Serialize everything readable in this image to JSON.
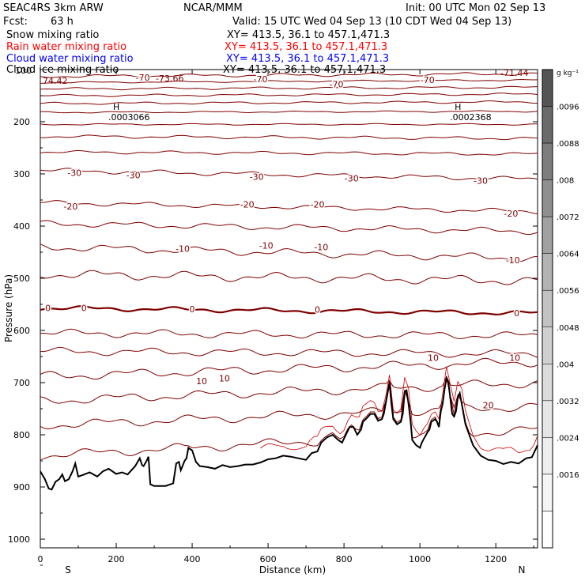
{
  "header": {
    "model": "SEAC4RS  3km ARW",
    "fcst_label": "Fcst:",
    "fcst_value": "63 h",
    "org": "NCAR/MMM",
    "init": "Init: 00 UTC Mon 02 Sep 13",
    "valid": "Valid: 15 UTC Wed 04 Sep 13 (10 CDT Wed 04 Sep 13)"
  },
  "fields": [
    {
      "name": "Snow mixing ratio",
      "xy": "XY= 413.5, 36.1 to 457.1,471.3",
      "color": "#000000"
    },
    {
      "name": "Rain water mixing ratio",
      "xy": "XY= 413.5, 36.1 to 457.1,471.3",
      "color": "#ff0000"
    },
    {
      "name": "Cloud water mixing ratio",
      "xy": "XY= 413.5, 36.1 to 457.1,471.3",
      "color": "#0000ff"
    },
    {
      "name": "Cloud ice mixing ratio",
      "xy": "XY= 413.5, 36.1 to 457.1,471.3",
      "color": "#000000"
    }
  ],
  "chart_data": {
    "type": "contour",
    "xlabel": "Distance (km)",
    "ylabel": "Pressure (hPa)",
    "xlim": [
      0,
      1310
    ],
    "ylim": [
      100,
      1050
    ],
    "xticks": [
      0,
      200,
      400,
      600,
      800,
      1000,
      1200
    ],
    "yticks": [
      200,
      300,
      400,
      500,
      600,
      700,
      800,
      900,
      1000
    ],
    "ytick_labels": [
      "200",
      "300",
      "400",
      "500",
      "600",
      "700",
      "800",
      "900",
      "1000"
    ],
    "x_end_labels": {
      "left": "S",
      "right": "N"
    },
    "ytick_label_top": "100",
    "temperature_contours_C": [
      -70,
      -30,
      -20,
      -10,
      0,
      10,
      20
    ],
    "contour_labels": [
      {
        "x": 270,
        "p": 115,
        "text": "-70"
      },
      {
        "x": 580,
        "p": 118,
        "text": "-70"
      },
      {
        "x": 780,
        "p": 128,
        "text": "-70"
      },
      {
        "x": 1020,
        "p": 120,
        "text": "-70"
      },
      {
        "x": 90,
        "p": 298,
        "text": "-30"
      },
      {
        "x": 245,
        "p": 302,
        "text": "-30"
      },
      {
        "x": 570,
        "p": 305,
        "text": "-30"
      },
      {
        "x": 820,
        "p": 308,
        "text": "-30"
      },
      {
        "x": 1160,
        "p": 313,
        "text": "-30"
      },
      {
        "x": 80,
        "p": 362,
        "text": "-20"
      },
      {
        "x": 545,
        "p": 358,
        "text": "-20"
      },
      {
        "x": 730,
        "p": 358,
        "text": "-20"
      },
      {
        "x": 1240,
        "p": 376,
        "text": "-20"
      },
      {
        "x": 375,
        "p": 443,
        "text": "-10"
      },
      {
        "x": 595,
        "p": 437,
        "text": "-10"
      },
      {
        "x": 740,
        "p": 440,
        "text": "-10"
      },
      {
        "x": 1245,
        "p": 465,
        "text": "-10"
      },
      {
        "x": 20,
        "p": 557,
        "text": "0"
      },
      {
        "x": 115,
        "p": 557,
        "text": "0"
      },
      {
        "x": 400,
        "p": 559,
        "text": "0"
      },
      {
        "x": 730,
        "p": 560,
        "text": "0"
      },
      {
        "x": 1255,
        "p": 567,
        "text": "0"
      },
      {
        "x": 1035,
        "p": 652,
        "text": "10"
      },
      {
        "x": 1250,
        "p": 652,
        "text": "10"
      },
      {
        "x": 425,
        "p": 697,
        "text": "10"
      },
      {
        "x": 485,
        "p": 692,
        "text": "10"
      },
      {
        "x": 1180,
        "p": 743,
        "text": "20"
      }
    ],
    "extrema": [
      {
        "x": 200,
        "p": 185,
        "marker": "H",
        "value": ".0003066"
      },
      {
        "x": 1100,
        "p": 185,
        "marker": "H",
        "value": ".0002368"
      }
    ],
    "corner_labels": {
      "top_left": "74.42",
      "top_mid": "-73.66",
      "top_right": "-71.44"
    },
    "terrain": [
      [
        0,
        870
      ],
      [
        12,
        885
      ],
      [
        22,
        903
      ],
      [
        30,
        905
      ],
      [
        40,
        890
      ],
      [
        50,
        885
      ],
      [
        58,
        876
      ],
      [
        65,
        889
      ],
      [
        75,
        885
      ],
      [
        85,
        870
      ],
      [
        92,
        855
      ],
      [
        100,
        880
      ],
      [
        112,
        877
      ],
      [
        130,
        872
      ],
      [
        150,
        880
      ],
      [
        165,
        870
      ],
      [
        180,
        865
      ],
      [
        200,
        875
      ],
      [
        215,
        872
      ],
      [
        230,
        876
      ],
      [
        250,
        860
      ],
      [
        262,
        845
      ],
      [
        268,
        858
      ],
      [
        272,
        860
      ],
      [
        280,
        850
      ],
      [
        285,
        842
      ],
      [
        290,
        895
      ],
      [
        300,
        898
      ],
      [
        330,
        898
      ],
      [
        350,
        893
      ],
      [
        358,
        855
      ],
      [
        365,
        852
      ],
      [
        370,
        868
      ],
      [
        380,
        850
      ],
      [
        385,
        845
      ],
      [
        390,
        825
      ],
      [
        400,
        830
      ],
      [
        410,
        852
      ],
      [
        420,
        860
      ],
      [
        440,
        862
      ],
      [
        460,
        865
      ],
      [
        480,
        858
      ],
      [
        500,
        862
      ],
      [
        520,
        860
      ],
      [
        540,
        857
      ],
      [
        560,
        857
      ],
      [
        580,
        853
      ],
      [
        600,
        847
      ],
      [
        620,
        845
      ],
      [
        640,
        840
      ],
      [
        660,
        842
      ],
      [
        680,
        845
      ],
      [
        700,
        848
      ],
      [
        715,
        835
      ],
      [
        730,
        832
      ],
      [
        740,
        815
      ],
      [
        755,
        805
      ],
      [
        770,
        800
      ],
      [
        785,
        810
      ],
      [
        795,
        815
      ],
      [
        805,
        800
      ],
      [
        815,
        785
      ],
      [
        825,
        785
      ],
      [
        835,
        800
      ],
      [
        845,
        790
      ],
      [
        850,
        775
      ],
      [
        860,
        768
      ],
      [
        870,
        760
      ],
      [
        880,
        760
      ],
      [
        890,
        773
      ],
      [
        900,
        770
      ],
      [
        905,
        760
      ],
      [
        915,
        720
      ],
      [
        920,
        700
      ],
      [
        925,
        740
      ],
      [
        930,
        770
      ],
      [
        940,
        780
      ],
      [
        950,
        775
      ],
      [
        955,
        760
      ],
      [
        960,
        718
      ],
      [
        965,
        715
      ],
      [
        970,
        740
      ],
      [
        975,
        770
      ],
      [
        980,
        810
      ],
      [
        990,
        820
      ],
      [
        1000,
        825
      ],
      [
        1005,
        815
      ],
      [
        1010,
        808
      ],
      [
        1020,
        795
      ],
      [
        1025,
        790
      ],
      [
        1030,
        775
      ],
      [
        1040,
        770
      ],
      [
        1045,
        775
      ],
      [
        1050,
        785
      ],
      [
        1055,
        755
      ],
      [
        1060,
        740
      ],
      [
        1065,
        712
      ],
      [
        1070,
        692
      ],
      [
        1075,
        700
      ],
      [
        1080,
        730
      ],
      [
        1085,
        760
      ],
      [
        1090,
        765
      ],
      [
        1095,
        755
      ],
      [
        1100,
        728
      ],
      [
        1105,
        720
      ],
      [
        1110,
        740
      ],
      [
        1120,
        780
      ],
      [
        1140,
        820
      ],
      [
        1160,
        840
      ],
      [
        1180,
        848
      ],
      [
        1200,
        850
      ],
      [
        1220,
        856
      ],
      [
        1240,
        852
      ],
      [
        1260,
        855
      ],
      [
        1280,
        845
      ],
      [
        1295,
        843
      ],
      [
        1310,
        820
      ]
    ],
    "colorbar": {
      "unit": "g kg⁻¹",
      "ticks": [
        ".0096",
        ".0088",
        ".008",
        ".0072",
        ".0064",
        ".0056",
        ".0048",
        ".004",
        ".0032",
        ".0024",
        ".0016"
      ],
      "shades": [
        "#555555",
        "#6a6a6a",
        "#7d7d7d",
        "#8f8f8f",
        "#a1a1a1",
        "#b2b2b2",
        "#c2c2c2",
        "#d0d0d0",
        "#dcdcdc",
        "#e6e6e6",
        "#eeeeee",
        "#f5f5f5",
        "#ffffff"
      ]
    },
    "colors": {
      "temperature": "#800000",
      "zero_line": "#800000",
      "terrain": "#000000",
      "rain_line": "#cc0000"
    }
  }
}
